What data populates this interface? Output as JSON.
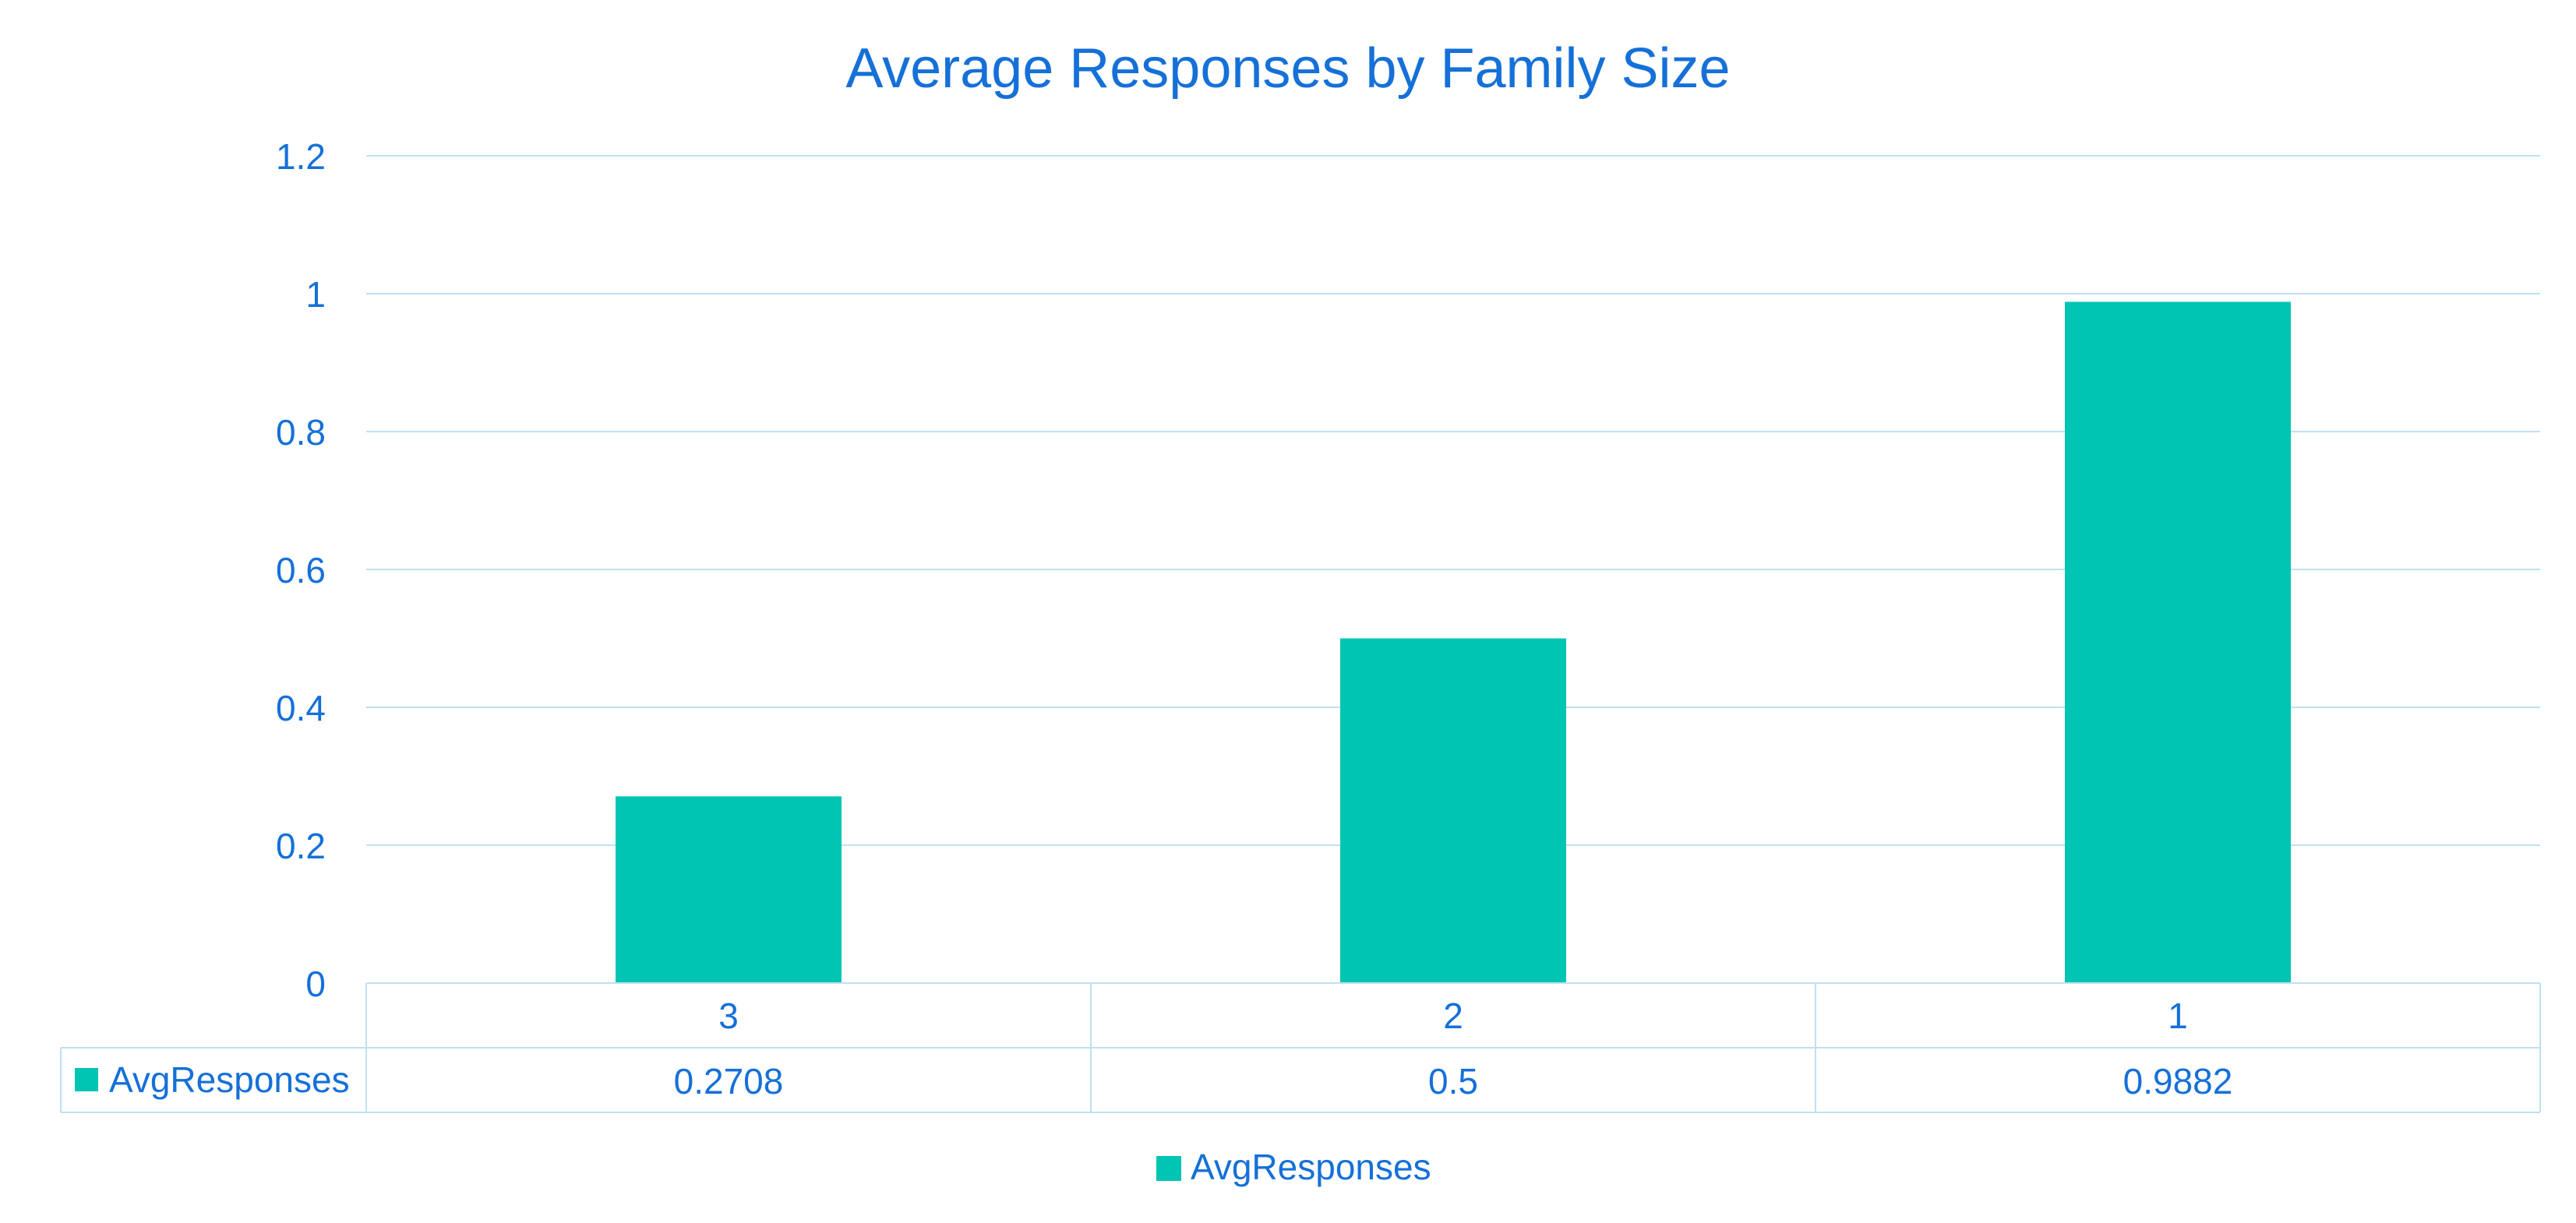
{
  "chart_data": {
    "type": "bar",
    "title": "Average Responses by Family Size",
    "categories": [
      "3",
      "2",
      "1"
    ],
    "series": [
      {
        "name": "AvgResponses",
        "values": [
          0.2708,
          0.5,
          0.9882
        ]
      }
    ],
    "data_table_labels": [
      "0.2708",
      "0.5",
      "0.9882"
    ],
    "y_ticks": [
      "0",
      "0.2",
      "0.4",
      "0.6",
      "0.8",
      "1",
      "1.2"
    ],
    "ylim": [
      0,
      1.2
    ],
    "grid": true,
    "legend_position": "bottom",
    "data_table": true
  },
  "colors": {
    "bar": "#00C5B2",
    "text": "#1570D8",
    "grid": "#BFE0F2",
    "table_border": "#BFE0F2"
  }
}
